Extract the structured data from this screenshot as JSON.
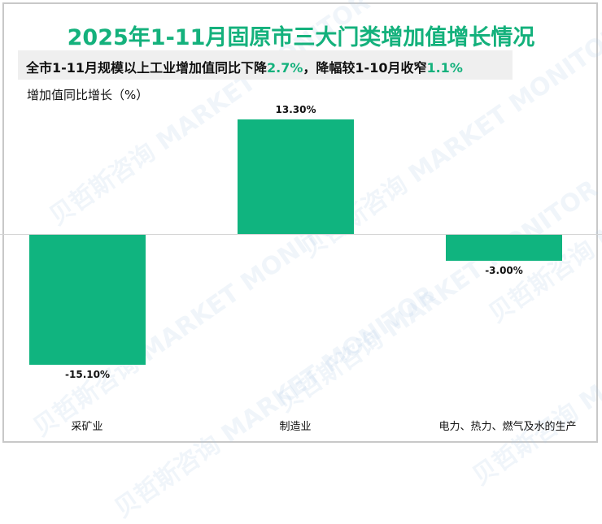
{
  "title_parts": [
    "2025年1-11月固原市三大门类增加值增长情况"
  ],
  "title": "2025年1-11月固原市三大门类增加值增长情况",
  "subtitle": {
    "p1": "全市1-11月规模以上工业增加值同比下降",
    "v1": "2.7%",
    "p2": "，降幅较1-10月收窄",
    "v2": "1.1%"
  },
  "y_axis_label": "增加值同比增长（%）",
  "watermark": "贝哲斯咨询 MARKET MONITOR",
  "colors": {
    "bar": "#10b47f",
    "title": "#14b17c"
  },
  "chart_data": {
    "type": "bar",
    "title": "2025年1-11月固原市三大门类增加值增长情况",
    "subtitle": "全市1-11月规模以上工业增加值同比下降2.7%，降幅较1-10月收窄1.1%",
    "xlabel": "",
    "ylabel": "增加值同比增长（%）",
    "categories": [
      "采矿业",
      "制造业",
      "电力、热力、燃气及水的生产"
    ],
    "values": [
      -15.1,
      13.3,
      -3.0
    ],
    "labels": [
      "-15.10%",
      "13.30%",
      "-3.00%"
    ],
    "grid": false,
    "legend": "none",
    "ylim": [
      -16,
      14
    ]
  }
}
